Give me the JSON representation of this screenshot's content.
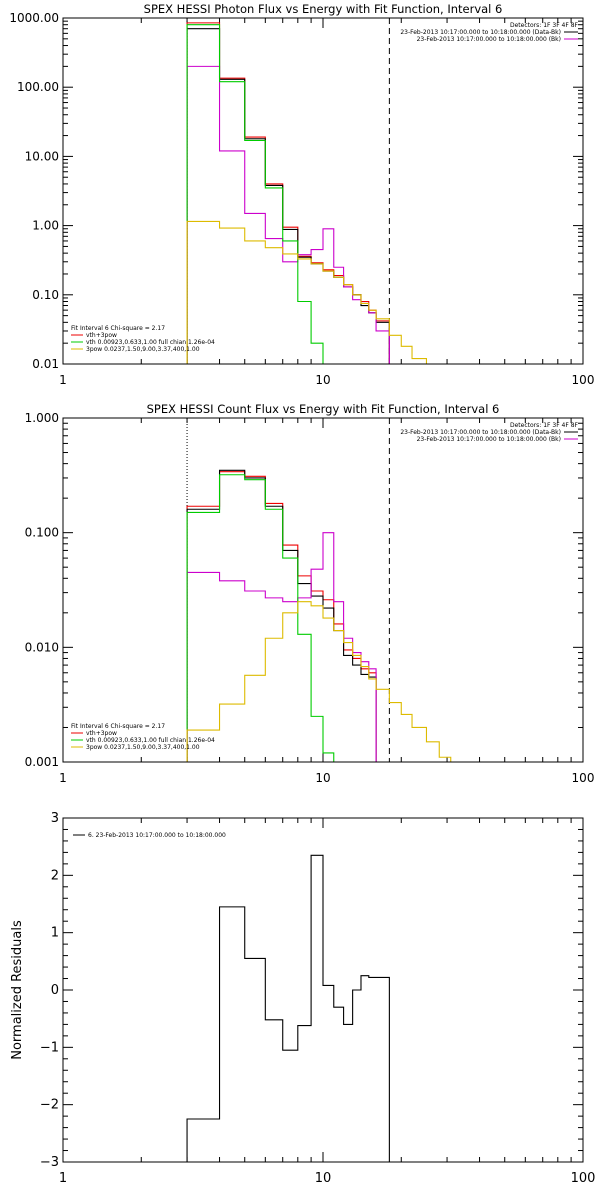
{
  "chart_data": [
    {
      "type": "line",
      "title": "SPEX HESSI Photon Flux vs Energy with Fit Function, Interval 6",
      "xlabel": "",
      "ylabel": "",
      "x_scale": "log",
      "y_scale": "log",
      "xlim": [
        1,
        100
      ],
      "ylim": [
        0.01,
        1000
      ],
      "x_ticks": [
        {
          "value": 1,
          "label": "1"
        },
        {
          "value": 10,
          "label": "10"
        },
        {
          "value": 100,
          "label": "100"
        }
      ],
      "y_ticks": [
        {
          "value": 1000,
          "label": "1000.00"
        },
        {
          "value": 100,
          "label": "100.00"
        },
        {
          "value": 10,
          "label": "10.00"
        },
        {
          "value": 1,
          "label": "1.00"
        },
        {
          "value": 0.1,
          "label": "0.10"
        },
        {
          "value": 0.01,
          "label": "0.01"
        }
      ],
      "legend_top_right": {
        "header": "Detectors: 1F 3F 4F 8F",
        "items": [
          {
            "text": "23-Feb-2013 10:17:00.000 to 10:18:00.000 (Data-Bk)",
            "color": "#000000"
          },
          {
            "text": "23-Feb-2013 10:17:00.000 to 10:18:00.000 (Bk)",
            "color": "#cc00cc"
          }
        ]
      },
      "legend_bottom_left": {
        "header": "Fit Interval 6    Chi-square = 2.17",
        "items": [
          {
            "text": "vth+3pow",
            "color": "#ee0000"
          },
          {
            "text": "vth 0.00923,0.633,1.00   full chian 1.26e-04",
            "color": "#00cc00"
          },
          {
            "text": "3pow 0.0237,1.50,9.00,3.37,400,1.00",
            "color": "#ddbb00"
          }
        ]
      },
      "vlines": [
        {
          "x": 3,
          "style": "dotted",
          "color": "#000000"
        },
        {
          "x": 18,
          "style": "dashed",
          "color": "#000000"
        }
      ],
      "bin_edges": [
        3,
        4,
        5,
        6,
        7,
        8,
        9,
        10,
        11,
        12,
        13,
        14,
        15,
        16,
        18,
        20,
        22,
        25
      ],
      "series": [
        {
          "color": "#ee0000",
          "values": [
            850,
            135,
            19,
            4,
            0.95,
            0.36,
            0.29,
            0.23,
            0.19,
            0.14,
            0.1,
            0.08,
            0.06,
            0.042
          ]
        },
        {
          "color": "#000000",
          "values": [
            700,
            130,
            18,
            3.8,
            0.88,
            0.35,
            0.28,
            0.22,
            0.18,
            0.13,
            0.1,
            0.07,
            0.055,
            0.04
          ]
        },
        {
          "color": "#cc00cc",
          "values": [
            200,
            12,
            1.5,
            0.65,
            0.3,
            0.38,
            0.45,
            0.9,
            0.25,
            0.13,
            0.085,
            0.075,
            0.055,
            0.03
          ]
        },
        {
          "color": "#00cc00",
          "values": [
            800,
            120,
            17,
            3.5,
            0.6,
            0.08,
            0.02,
            0.008
          ]
        },
        {
          "color": "#ddbb00",
          "values": [
            1.15,
            0.92,
            0.6,
            0.48,
            0.39,
            0.33,
            0.28,
            0.22,
            0.18,
            0.14,
            0.1,
            0.075,
            0.06,
            0.045,
            0.026,
            0.018,
            0.012
          ]
        }
      ]
    },
    {
      "type": "line",
      "title": "SPEX HESSI Count Flux vs Energy with Fit Function, Interval 6",
      "xlabel": "",
      "ylabel": "",
      "x_scale": "log",
      "y_scale": "log",
      "xlim": [
        1,
        100
      ],
      "ylim": [
        0.001,
        1
      ],
      "x_ticks": [
        {
          "value": 1,
          "label": "1"
        },
        {
          "value": 10,
          "label": "10"
        },
        {
          "value": 100,
          "label": "100"
        }
      ],
      "y_ticks": [
        {
          "value": 1,
          "label": "1.000"
        },
        {
          "value": 0.1,
          "label": "0.100"
        },
        {
          "value": 0.01,
          "label": "0.010"
        },
        {
          "value": 0.001,
          "label": "0.001"
        }
      ],
      "legend_top_right": {
        "header": "Detectors: 1F 3F 4F 8F",
        "items": [
          {
            "text": "23-Feb-2013 10:17:00.000 to 10:18:00.000 (Data-Bk)",
            "color": "#000000"
          },
          {
            "text": "23-Feb-2013 10:17:00.000 to 10:18:00.000 (Bk)",
            "color": "#cc00cc"
          }
        ]
      },
      "legend_bottom_left": {
        "header": "Fit Interval 6    Chi-square = 2.17",
        "items": [
          {
            "text": "vth+3pow",
            "color": "#ee0000"
          },
          {
            "text": "vth 0.00923,0.633,1.00   full chian 1.26e-04",
            "color": "#00cc00"
          },
          {
            "text": "3pow 0.0237,1.50,9.00,3.37,400,1.00",
            "color": "#ddbb00"
          }
        ]
      },
      "vlines": [
        {
          "x": 3,
          "style": "dotted",
          "color": "#000000"
        },
        {
          "x": 18,
          "style": "dashed",
          "color": "#000000"
        }
      ],
      "bin_edges": [
        3,
        4,
        5,
        6,
        7,
        8,
        9,
        10,
        11,
        12,
        13,
        14,
        15,
        16,
        18,
        20,
        22,
        25,
        28,
        31
      ],
      "series": [
        {
          "color": "#ee0000",
          "values": [
            0.17,
            0.34,
            0.31,
            0.18,
            0.078,
            0.042,
            0.031,
            0.026,
            0.016,
            0.0095,
            0.008,
            0.0065,
            0.006
          ]
        },
        {
          "color": "#000000",
          "values": [
            0.16,
            0.35,
            0.3,
            0.17,
            0.07,
            0.036,
            0.028,
            0.022,
            0.014,
            0.0085,
            0.007,
            0.0058,
            0.0055
          ]
        },
        {
          "color": "#cc00cc",
          "values": [
            0.045,
            0.038,
            0.031,
            0.027,
            0.025,
            0.027,
            0.048,
            0.1,
            0.025,
            0.012,
            0.009,
            0.0075,
            0.0065
          ]
        },
        {
          "color": "#00cc00",
          "values": [
            0.15,
            0.32,
            0.29,
            0.16,
            0.06,
            0.013,
            0.0025,
            0.0012
          ]
        },
        {
          "color": "#ddbb00",
          "values": [
            0.0019,
            0.0032,
            0.0057,
            0.012,
            0.02,
            0.025,
            0.023,
            0.018,
            0.014,
            0.011,
            0.0085,
            0.0068,
            0.0053,
            0.0043,
            0.0033,
            0.0026,
            0.002,
            0.0015,
            0.0011
          ]
        }
      ]
    },
    {
      "type": "line",
      "title": "",
      "xlabel": "",
      "ylabel": "Normalized Residuals",
      "x_scale": "log",
      "y_scale": "linear",
      "xlim": [
        1,
        100
      ],
      "ylim": [
        -3,
        3
      ],
      "x_ticks": [
        {
          "value": 1,
          "label": "1"
        },
        {
          "value": 10,
          "label": "10"
        },
        {
          "value": 100,
          "label": "100"
        }
      ],
      "y_ticks": [
        {
          "value": 3,
          "label": "3"
        },
        {
          "value": 2,
          "label": "2"
        },
        {
          "value": 1,
          "label": "1"
        },
        {
          "value": 0,
          "label": "0"
        },
        {
          "value": -1,
          "label": "−1"
        },
        {
          "value": -2,
          "label": "−2"
        },
        {
          "value": -3,
          "label": "−3"
        }
      ],
      "legend_top_left": {
        "items": [
          {
            "text": "6. 23-Feb-2013 10:17:00.000 to 10:18:00.000",
            "color": "#000000"
          }
        ]
      },
      "bin_edges": [
        3,
        4,
        5,
        6,
        7,
        8,
        9,
        10,
        11,
        12,
        13,
        14,
        15,
        16,
        18
      ],
      "series": [
        {
          "color": "#000000",
          "values": [
            -2.25,
            1.45,
            0.55,
            -0.52,
            -1.05,
            -0.62,
            2.35,
            0.08,
            -0.3,
            -0.6,
            0.0,
            0.25,
            0.22,
            0.22
          ]
        }
      ]
    }
  ]
}
